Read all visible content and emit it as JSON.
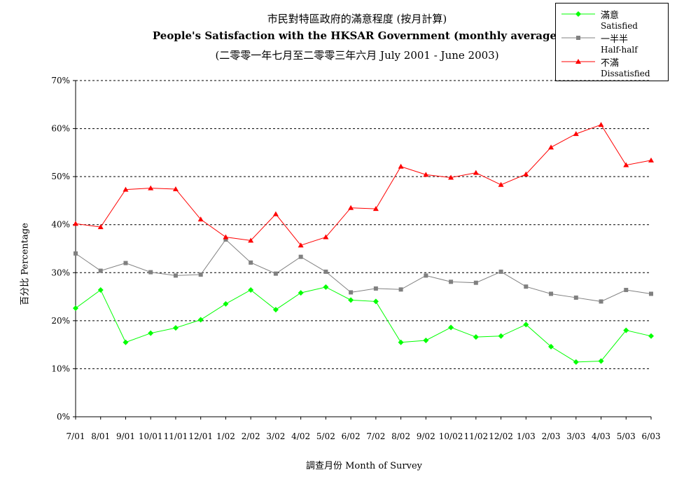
{
  "chart_data": {
    "type": "line",
    "title": "市民對特區政府的滿意程度 (按月計算)",
    "subtitle": "People's Satisfaction with the HKSAR Government (monthly average)",
    "subtitle2": "(二零零一年七月至二零零三年六月 July 2001 - June 2003)",
    "xlabel": "調查月份 Month of Survey",
    "ylabel": "百分比 Percentage",
    "categories": [
      "7/01",
      "8/01",
      "9/01",
      "10/01",
      "11/01",
      "12/01",
      "1/02",
      "2/02",
      "3/02",
      "4/02",
      "5/02",
      "6/02",
      "7/02",
      "8/02",
      "9/02",
      "10/02",
      "11/02",
      "12/02",
      "1/03",
      "2/03",
      "3/03",
      "4/03",
      "5/03",
      "6/03"
    ],
    "y_ticks": [
      "0%",
      "10%",
      "20%",
      "30%",
      "40%",
      "50%",
      "60%",
      "70%"
    ],
    "ylim": [
      0,
      70
    ],
    "grid": true,
    "legend_position": "top-right",
    "series": [
      {
        "name": "滿意",
        "name_en": "Satisfied",
        "color": "#00ff00",
        "marker": "diamond",
        "values": [
          22.6,
          26.4,
          15.5,
          17.4,
          18.5,
          20.2,
          23.5,
          26.4,
          22.3,
          25.8,
          27.0,
          24.3,
          24.0,
          15.5,
          15.9,
          18.6,
          16.6,
          16.8,
          19.2,
          14.6,
          11.4,
          11.6,
          18.0,
          16.8
        ]
      },
      {
        "name": "一半半",
        "name_en": "Half-half",
        "color": "#808080",
        "marker": "square",
        "values": [
          34.0,
          30.4,
          32.0,
          30.1,
          29.4,
          29.6,
          36.9,
          32.1,
          29.8,
          33.3,
          30.2,
          25.9,
          26.7,
          26.5,
          29.4,
          28.1,
          27.9,
          30.2,
          27.1,
          25.6,
          24.8,
          24.0,
          26.4,
          25.6
        ]
      },
      {
        "name": "不滿",
        "name_en": "Dissatisfied",
        "color": "#ff0000",
        "marker": "triangle",
        "values": [
          40.2,
          39.5,
          47.3,
          47.6,
          47.4,
          41.1,
          37.4,
          36.7,
          42.2,
          35.7,
          37.4,
          43.5,
          43.3,
          52.1,
          50.4,
          49.8,
          50.8,
          48.3,
          50.5,
          56.1,
          58.9,
          60.8,
          52.4,
          53.4
        ]
      }
    ]
  }
}
